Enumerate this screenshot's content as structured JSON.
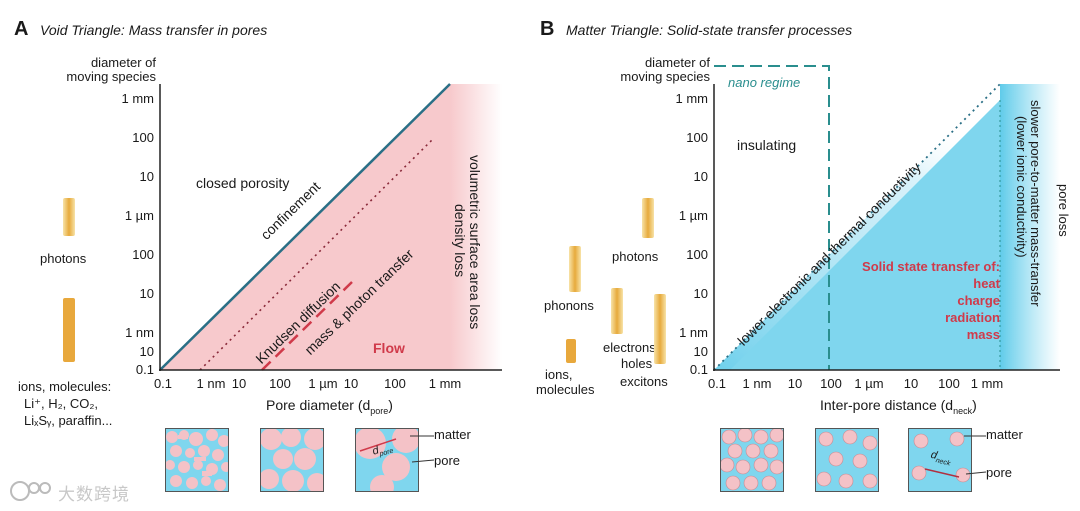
{
  "panel_a": {
    "letter": "A",
    "title": "Void Triangle: Mass transfer in pores",
    "y_axis_title_line1": "diameter of",
    "y_axis_title_line2": "moving species",
    "y_ticks": [
      "1 mm",
      "100",
      "10",
      "1 µm",
      "100",
      "10",
      "1 nm",
      "10",
      "0.1"
    ],
    "x_ticks": [
      "0.1",
      "1 nm",
      "10",
      "100",
      "1 µm",
      "10",
      "100",
      "1 mm"
    ],
    "x_axis_title": "Pore diameter (d",
    "x_axis_sub": "pore",
    "x_axis_close": ")",
    "regions": {
      "closed_porosity": "closed porosity",
      "confinement": "confinement",
      "knudsen": "Knudsen diffusion",
      "mass_photon": "mass & photon transfer",
      "flow": "Flow",
      "volumetric": "volumetric surface area loss",
      "density_loss": "density loss"
    },
    "species": {
      "photons": "photons",
      "ions_line1": "ions, molecules:",
      "ions_line2": "Li⁺, H₂, CO₂,",
      "ions_line3": "LiₓSᵧ, paraffin..."
    },
    "legend": {
      "matter": "matter",
      "pore": "pore",
      "d_label": "d",
      "d_sub": "pore"
    }
  },
  "panel_b": {
    "letter": "B",
    "title": "Matter Triangle: Solid-state transfer processes",
    "y_axis_title_line1": "diameter of",
    "y_axis_title_line2": "moving species",
    "y_ticks": [
      "1 mm",
      "100",
      "10",
      "1 µm",
      "100",
      "10",
      "1 nm",
      "10",
      "0.1"
    ],
    "x_ticks": [
      "0.1",
      "1 nm",
      "10",
      "100",
      "1 µm",
      "10",
      "100",
      "1 mm"
    ],
    "x_axis_title": "Inter-pore distance (d",
    "x_axis_sub": "neck",
    "x_axis_close": ")",
    "regions": {
      "nano_regime": "nano regime",
      "insulating": "insulating",
      "lower_conductivity": "lower electronic and thermal conductivity",
      "solid_state_1": "Solid state transfer of:",
      "solid_state_2": "heat",
      "solid_state_3": "charge",
      "solid_state_4": "radiation",
      "solid_state_5": "mass",
      "slower_1": "slower pore-to-matter mass-transfer",
      "slower_2": "(lower ionic conductivity)",
      "pore_loss": "pore loss"
    },
    "species": {
      "photons": "photons",
      "phonons": "phonons",
      "electrons_line1": "electrons,",
      "electrons_line2": "holes",
      "excitons": "excitons",
      "ions_line1": "ions,",
      "ions_line2": "molecules"
    },
    "legend": {
      "matter": "matter",
      "pore": "pore",
      "d_label": "d",
      "d_sub": "neck"
    }
  },
  "watermark": "大数跨境",
  "colors": {
    "pink": "#f7c9cc",
    "blue": "#7fd6ee",
    "teal": "#2a6f86",
    "red": "#d03a4a",
    "gold": "#e8a83c"
  }
}
